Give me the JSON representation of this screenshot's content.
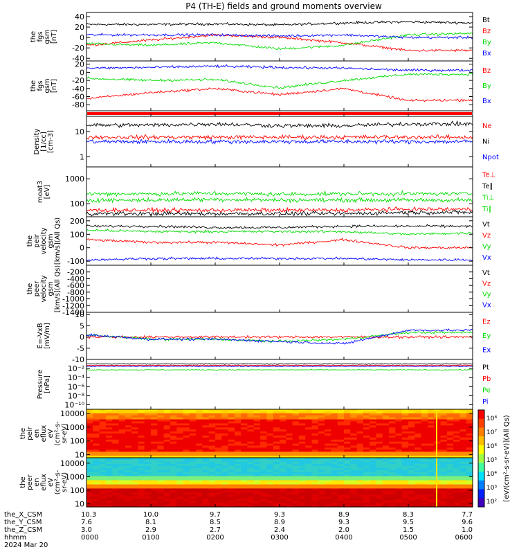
{
  "title": "P4 (TH-E) fields and ground moments overview",
  "colors": {
    "black": "#000000",
    "red": "#ff0000",
    "green": "#00dd00",
    "blue": "#0000ff"
  },
  "panels": [
    {
      "id": "p1",
      "ylabel": [
        "the",
        "fgs",
        "gsm",
        "[nT]"
      ],
      "ylim": [
        -45,
        48
      ],
      "ticks": [
        {
          "v": 40,
          "t": "40"
        },
        {
          "v": 20,
          "t": "20"
        },
        {
          "v": 0,
          "t": "0"
        },
        {
          "v": -20,
          "t": "-20"
        },
        {
          "v": -40,
          "t": "-40"
        }
      ],
      "legend": [
        {
          "t": "Bt",
          "c": "black"
        },
        {
          "t": "Bz",
          "c": "red"
        },
        {
          "t": "By",
          "c": "green"
        },
        {
          "t": "Bx",
          "c": "blue"
        }
      ]
    },
    {
      "id": "p2",
      "ylabel": [
        "the",
        "fgs",
        "gsm",
        "[nT]"
      ],
      "ylim": [
        -95,
        28
      ],
      "ticks": [
        {
          "v": 20,
          "t": "20"
        },
        {
          "v": 0,
          "t": "0"
        },
        {
          "v": -20,
          "t": "-20"
        },
        {
          "v": -40,
          "t": "-40"
        },
        {
          "v": -60,
          "t": "-60"
        },
        {
          "v": -80,
          "t": "-80"
        }
      ],
      "legend": [
        {
          "t": "Bz",
          "c": "red"
        },
        {
          "t": "By",
          "c": "green"
        },
        {
          "t": "Bx",
          "c": "blue"
        }
      ]
    },
    {
      "id": "p3",
      "ylabel": [
        "Density",
        "[1/cc]",
        "[cm-3]"
      ],
      "ylim": [
        0.4,
        40
      ],
      "log": true,
      "ticks": [
        {
          "v": 10,
          "t": "10"
        },
        {
          "v": 1,
          "t": "1"
        }
      ],
      "legend": [
        {
          "t": "Ne",
          "c": "red"
        },
        {
          "t": "Ni",
          "c": "black"
        },
        {
          "t": "Npot",
          "c": "blue"
        }
      ]
    },
    {
      "id": "p4",
      "ylabel": [
        "moat3",
        "[eV]"
      ],
      "ylim": [
        30,
        3000
      ],
      "log": true,
      "ticks": [
        {
          "v": 1000,
          "t": "1000"
        },
        {
          "v": 100,
          "t": "100"
        }
      ],
      "legend": [
        {
          "t": "Te⊥",
          "c": "red"
        },
        {
          "t": "Te∥",
          "c": "black"
        },
        {
          "t": "Ti⊥",
          "c": "green"
        },
        {
          "t": "Ti∥",
          "c": "green"
        }
      ]
    },
    {
      "id": "p5",
      "ylabel": [
        "the",
        "peir",
        "velocity",
        "gsm",
        "[km/s](All Qs)"
      ],
      "ylim": [
        -130,
        230
      ],
      "ticks": [
        {
          "v": 200,
          "t": "200"
        },
        {
          "v": 100,
          "t": "100"
        },
        {
          "v": 0,
          "t": "0"
        },
        {
          "v": -100,
          "t": "-100"
        }
      ],
      "legend": [
        {
          "t": "Vt",
          "c": "black"
        },
        {
          "t": "Vz",
          "c": "red"
        },
        {
          "t": "Vy",
          "c": "green"
        },
        {
          "t": "Vx",
          "c": "blue"
        }
      ]
    },
    {
      "id": "p6",
      "ylabel": [
        "the",
        "peer",
        "velocity",
        "gsm",
        "[km/s](All Qs)"
      ],
      "ylim": [
        -1400,
        0
      ],
      "ticks": [
        {
          "v": -200,
          "t": "-200"
        },
        {
          "v": -400,
          "t": "-400"
        },
        {
          "v": -600,
          "t": "-600"
        },
        {
          "v": -800,
          "t": "-800"
        },
        {
          "v": -1000,
          "t": "-1000"
        },
        {
          "v": -1200,
          "t": "-1200"
        },
        {
          "v": -1400,
          "t": "-1400"
        }
      ],
      "legend": [
        {
          "t": "Vt",
          "c": "black"
        },
        {
          "t": "Vz",
          "c": "red"
        },
        {
          "t": "Vy",
          "c": "green"
        },
        {
          "t": "Vx",
          "c": "blue"
        }
      ]
    },
    {
      "id": "p7",
      "ylabel": [
        "E=-VxB",
        "[mV/m]"
      ],
      "ylim": [
        -10,
        11
      ],
      "ticks": [
        {
          "v": 10,
          "t": "10"
        },
        {
          "v": 5,
          "t": "5"
        },
        {
          "v": 0,
          "t": "0"
        },
        {
          "v": -5,
          "t": "-5"
        },
        {
          "v": -10,
          "t": "-10"
        }
      ],
      "legend": [
        {
          "t": "Ez",
          "c": "red"
        },
        {
          "t": "Ey",
          "c": "green"
        },
        {
          "t": "Ex",
          "c": "blue"
        }
      ]
    },
    {
      "id": "p8",
      "ylabel": [
        "Pressure",
        "[nPa]"
      ],
      "ylim": [
        1e-11,
        1
      ],
      "log": true,
      "ticks": [
        {
          "v": 0.01,
          "t": "10⁻²"
        },
        {
          "v": 0.0001,
          "t": "10⁻⁴"
        },
        {
          "v": 1e-06,
          "t": "10⁻⁶"
        },
        {
          "v": 1e-08,
          "t": "10⁻⁸"
        },
        {
          "v": 1e-10,
          "t": "10⁻¹⁰"
        }
      ],
      "legend": [
        {
          "t": "Pt",
          "c": "black"
        },
        {
          "t": "Pb",
          "c": "red"
        },
        {
          "t": "Pe",
          "c": "green"
        },
        {
          "t": "Pi",
          "c": "blue"
        }
      ]
    },
    {
      "id": "p9",
      "ylabel": [
        "the",
        "peir",
        "en",
        "eflux",
        "eV",
        "(cm²-s-",
        "sr-eV)"
      ],
      "ylim": [
        6,
        20000
      ],
      "log": true,
      "ticks": [
        {
          "v": 10000,
          "t": "10000"
        },
        {
          "v": 1000,
          "t": "1000"
        },
        {
          "v": 100,
          "t": "100"
        },
        {
          "v": 10,
          "t": "10"
        }
      ],
      "spectrogram": "ion"
    },
    {
      "id": "p10",
      "ylabel": [
        "the",
        "peer",
        "en",
        "eflux",
        "eV",
        "(cm²-s-",
        "sr-eV)"
      ],
      "ylim": [
        6,
        25000
      ],
      "log": true,
      "ticks": [
        {
          "v": 10000,
          "t": "10000"
        },
        {
          "v": 1000,
          "t": "1000"
        },
        {
          "v": 100,
          "t": "100"
        },
        {
          "v": 10,
          "t": "10"
        }
      ],
      "spectrogram": "electron"
    }
  ],
  "colorbar": {
    "ticks": [
      "10⁸",
      "10⁷",
      "10⁶",
      "10⁵",
      "10⁴",
      "10³",
      "10²"
    ],
    "label": "[eV/(cm²-s-sr-eV)](All Qs)"
  },
  "xaxis": {
    "rows": [
      {
        "label": "the_X_CSM",
        "values": [
          "10.3",
          "10.0",
          "9.7",
          "9.3",
          "8.9",
          "8.3",
          "7.7"
        ]
      },
      {
        "label": "the_Y_CSM",
        "values": [
          "7.6",
          "8.1",
          "8.5",
          "8.9",
          "9.3",
          "9.5",
          "9.6"
        ]
      },
      {
        "label": "the_Z_CSM",
        "values": [
          "3.0",
          "2.9",
          "2.7",
          "2.4",
          "2.0",
          "1.5",
          "1.0"
        ]
      },
      {
        "label": "hhmm",
        "values": [
          "0000",
          "0100",
          "0200",
          "0300",
          "0400",
          "0500",
          "0600"
        ]
      }
    ],
    "date": "2024 Mar 20"
  },
  "chart_data": [
    {
      "type": "line",
      "title": "P4 (TH-E) fields and ground moments overview",
      "x": [
        "0000",
        "0100",
        "0200",
        "0300",
        "0400",
        "0500",
        "0600"
      ],
      "series": [
        {
          "name": "Bt",
          "values": [
            25,
            25,
            26,
            24,
            28,
            30,
            28
          ]
        },
        {
          "name": "Bz",
          "values": [
            -15,
            -5,
            5,
            0,
            -10,
            -25,
            -25
          ]
        },
        {
          "name": "By",
          "values": [
            -12,
            -15,
            -10,
            -22,
            -15,
            5,
            8
          ]
        },
        {
          "name": "Bx",
          "values": [
            5,
            5,
            5,
            3,
            5,
            0,
            0
          ]
        }
      ],
      "ylim": [
        -45,
        48
      ]
    },
    {
      "type": "line",
      "x": [
        "0000",
        "0100",
        "0200",
        "0300",
        "0400",
        "0500",
        "0600"
      ],
      "series": [
        {
          "name": "Bz",
          "values": [
            -65,
            -50,
            -40,
            -55,
            -40,
            -70,
            -68
          ]
        },
        {
          "name": "By",
          "values": [
            -15,
            -20,
            -18,
            -38,
            -20,
            -5,
            -5
          ]
        },
        {
          "name": "Bx",
          "values": [
            10,
            12,
            15,
            12,
            10,
            5,
            5
          ]
        }
      ],
      "ylim": [
        -95,
        28
      ]
    },
    {
      "type": "line",
      "x": [
        "0000",
        "0100",
        "0200",
        "0300",
        "0400",
        "0500",
        "0600"
      ],
      "series": [
        {
          "name": "Ne",
          "values": [
            6,
            6,
            6,
            6,
            6,
            6,
            6
          ]
        },
        {
          "name": "Ni",
          "values": [
            18,
            18,
            20,
            17,
            17,
            20,
            20
          ]
        },
        {
          "name": "Npot",
          "values": [
            4,
            4,
            4,
            4,
            4,
            4,
            4
          ]
        }
      ],
      "ylim": [
        0.4,
        40
      ]
    },
    {
      "type": "line",
      "x": [
        "0000",
        "0100",
        "0200",
        "0300",
        "0400",
        "0500",
        "0600"
      ],
      "series": [
        {
          "name": "Te⊥",
          "values": [
            55,
            55,
            55,
            55,
            55,
            60,
            60
          ]
        },
        {
          "name": "Te∥",
          "values": [
            40,
            40,
            40,
            40,
            40,
            45,
            45
          ]
        },
        {
          "name": "Ti⊥",
          "values": [
            250,
            250,
            260,
            240,
            250,
            250,
            250
          ]
        },
        {
          "name": "Ti∥",
          "values": [
            140,
            140,
            150,
            140,
            140,
            140,
            140
          ]
        }
      ],
      "ylim": [
        30,
        3000
      ]
    },
    {
      "type": "line",
      "x": [
        "0000",
        "0100",
        "0200",
        "0300",
        "0400",
        "0500",
        "0600"
      ],
      "series": [
        {
          "name": "Vt",
          "values": [
            160,
            160,
            150,
            150,
            160,
            160,
            160
          ]
        },
        {
          "name": "Vz",
          "values": [
            60,
            40,
            40,
            20,
            60,
            0,
            0
          ]
        },
        {
          "name": "Vy",
          "values": [
            130,
            120,
            120,
            120,
            120,
            100,
            110
          ]
        },
        {
          "name": "Vx",
          "values": [
            -90,
            -80,
            -80,
            -80,
            -80,
            -90,
            -90
          ]
        }
      ],
      "ylim": [
        -130,
        230
      ]
    },
    {
      "type": "line",
      "x": [
        "0000",
        "0100",
        "0200",
        "0300",
        "0400",
        "0500",
        "0600"
      ],
      "series": [],
      "ylim": [
        -1400,
        0
      ]
    },
    {
      "type": "line",
      "x": [
        "0000",
        "0100",
        "0200",
        "0300",
        "0400",
        "0500",
        "0600"
      ],
      "series": [
        {
          "name": "Ez",
          "values": [
            0,
            0,
            0,
            0,
            0,
            0,
            0
          ]
        },
        {
          "name": "Ey",
          "values": [
            1,
            -1,
            -1,
            -2,
            -1,
            2,
            2
          ]
        },
        {
          "name": "Ex",
          "values": [
            1,
            -1,
            -1,
            -2,
            -3,
            3,
            3
          ]
        }
      ],
      "ylim": [
        -10,
        11
      ]
    },
    {
      "type": "line",
      "x": [
        "0000",
        "0100",
        "0200",
        "0300",
        "0400",
        "0500",
        "0600"
      ],
      "series": [
        {
          "name": "Pt",
          "values": [
            0.1,
            0.1,
            0.1,
            0.1,
            0.1,
            0.1,
            0.1
          ]
        },
        {
          "name": "Pb",
          "values": [
            0.05,
            0.05,
            0.05,
            0.05,
            0.05,
            0.05,
            0.05
          ]
        },
        {
          "name": "Pe",
          "values": [
            0.005,
            0.005,
            0.005,
            0.005,
            0.005,
            0.005,
            0.005
          ]
        },
        {
          "name": "Pi",
          "values": [
            0.03,
            0.03,
            0.03,
            0.03,
            0.03,
            0.03,
            0.03
          ]
        }
      ],
      "ylim": [
        1e-11,
        1
      ]
    },
    {
      "type": "heatmap",
      "x": [
        "0000",
        "0100",
        "0200",
        "0300",
        "0400",
        "0500",
        "0600"
      ],
      "ylim": [
        6,
        20000
      ]
    },
    {
      "type": "heatmap",
      "x": [
        "0000",
        "0100",
        "0200",
        "0300",
        "0400",
        "0500",
        "0600"
      ],
      "ylim": [
        6,
        25000
      ]
    }
  ]
}
